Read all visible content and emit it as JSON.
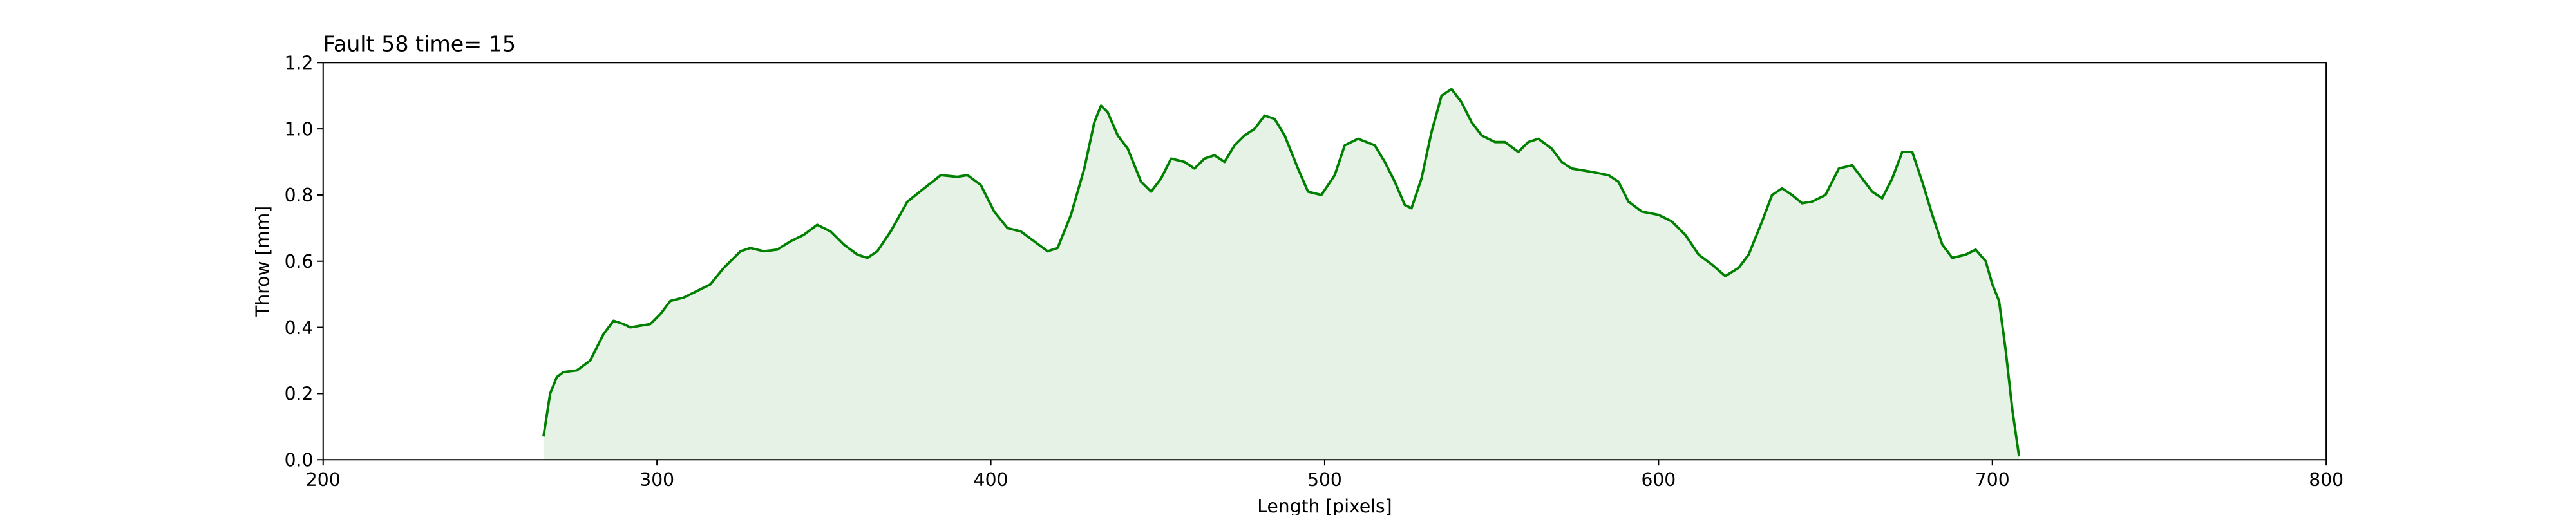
{
  "chart_data": {
    "type": "line",
    "title": "Fault 58 time= 15",
    "xlabel": "Length [pixels]",
    "ylabel": "Throw [mm]",
    "color": "#008000",
    "fill_color": "#e5f2e5",
    "xlim": [
      200,
      800
    ],
    "xticks": [
      200,
      300,
      400,
      500,
      600,
      700,
      800
    ],
    "ylim": [
      0,
      1.2
    ],
    "yticks": [
      {
        "value": 0,
        "label": "0.0"
      },
      {
        "value": 0.2,
        "label": "0.2"
      },
      {
        "value": 0.4,
        "label": "0.4"
      },
      {
        "value": 0.6,
        "label": "0.6"
      },
      {
        "value": 0.8,
        "label": "0.8"
      },
      {
        "value": 1,
        "label": "1.0"
      },
      {
        "value": 1.2,
        "label": "1.2"
      }
    ],
    "x": [
      266,
      268,
      270,
      272,
      276,
      280,
      284,
      287,
      290,
      292,
      298,
      301,
      304,
      308,
      312,
      316,
      320,
      325,
      328,
      332,
      336,
      340,
      344,
      348,
      352,
      356,
      360,
      363,
      366,
      370,
      375,
      380,
      385,
      390,
      393,
      397,
      401,
      405,
      409,
      413,
      417,
      420,
      424,
      428,
      431,
      433,
      435,
      438,
      441,
      445,
      448,
      451,
      454,
      458,
      461,
      464,
      467,
      470,
      473,
      476,
      479,
      482,
      485,
      488,
      492,
      495,
      499,
      503,
      506,
      510,
      515,
      518,
      521,
      524,
      526,
      529,
      532,
      535,
      538,
      541,
      544,
      547,
      551,
      554,
      558,
      561,
      564,
      568,
      571,
      574,
      580,
      585,
      588,
      591,
      595,
      600,
      604,
      608,
      612,
      616,
      620,
      624,
      627,
      631,
      634,
      637,
      640,
      643,
      646,
      650,
      654,
      658,
      661,
      664,
      667,
      670,
      673,
      676,
      679,
      682,
      685,
      688,
      692,
      695,
      698,
      700,
      702,
      704,
      706,
      708
    ],
    "values": [
      0.07,
      0.2,
      0.25,
      0.265,
      0.27,
      0.3,
      0.38,
      0.42,
      0.41,
      0.4,
      0.41,
      0.44,
      0.48,
      0.49,
      0.51,
      0.53,
      0.58,
      0.63,
      0.64,
      0.63,
      0.635,
      0.66,
      0.68,
      0.71,
      0.69,
      0.65,
      0.62,
      0.61,
      0.63,
      0.69,
      0.78,
      0.82,
      0.86,
      0.855,
      0.86,
      0.83,
      0.75,
      0.7,
      0.69,
      0.66,
      0.63,
      0.64,
      0.74,
      0.88,
      1.02,
      1.07,
      1.05,
      0.98,
      0.94,
      0.84,
      0.81,
      0.85,
      0.91,
      0.9,
      0.88,
      0.91,
      0.92,
      0.9,
      0.95,
      0.98,
      1.0,
      1.04,
      1.03,
      0.98,
      0.88,
      0.81,
      0.8,
      0.86,
      0.95,
      0.97,
      0.95,
      0.9,
      0.84,
      0.77,
      0.76,
      0.85,
      0.99,
      1.1,
      1.12,
      1.08,
      1.02,
      0.98,
      0.96,
      0.96,
      0.93,
      0.96,
      0.97,
      0.94,
      0.9,
      0.88,
      0.87,
      0.86,
      0.84,
      0.78,
      0.75,
      0.74,
      0.72,
      0.68,
      0.62,
      0.59,
      0.555,
      0.58,
      0.62,
      0.72,
      0.8,
      0.82,
      0.8,
      0.775,
      0.78,
      0.8,
      0.88,
      0.89,
      0.85,
      0.81,
      0.79,
      0.85,
      0.93,
      0.93,
      0.84,
      0.74,
      0.65,
      0.61,
      0.62,
      0.635,
      0.6,
      0.53,
      0.48,
      0.33,
      0.15,
      0.01
    ]
  }
}
